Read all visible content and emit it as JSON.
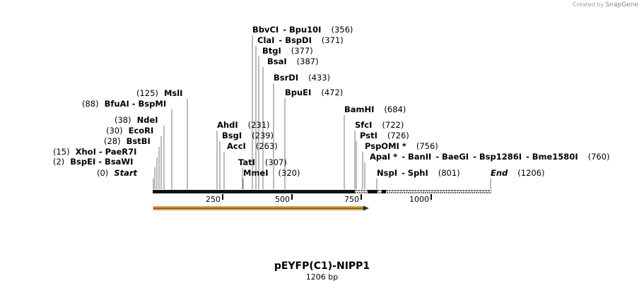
{
  "credit": {
    "prefix": "Created by",
    "brand": "SnapGene"
  },
  "plasmid": {
    "name": "pEYFP(C1)-NIPP1",
    "length_label": "1206 bp"
  },
  "scale_ticks": [
    "250",
    "500",
    "750",
    "1000"
  ],
  "sites": [
    {
      "id": "bbvci",
      "enzymes": [
        "BbvCI",
        "Bpu10I"
      ],
      "pos": "(356)"
    },
    {
      "id": "clai",
      "enzymes": [
        "ClaI",
        "BspDI"
      ],
      "pos": "(371)"
    },
    {
      "id": "btgi",
      "enzymes": [
        "BtgI"
      ],
      "pos": "(377)"
    },
    {
      "id": "bsai",
      "enzymes": [
        "BsaI"
      ],
      "pos": "(387)"
    },
    {
      "id": "bsrdi",
      "enzymes": [
        "BsrDI"
      ],
      "pos": "(433)"
    },
    {
      "id": "bpuei",
      "enzymes": [
        "BpuEI"
      ],
      "pos": "(472)"
    },
    {
      "id": "msli",
      "enzymes": [
        "MslI"
      ],
      "pos": "(125)"
    },
    {
      "id": "bfuai",
      "enzymes": [
        "BfuAI",
        "BspMI"
      ],
      "pos": "(88)"
    },
    {
      "id": "ndei",
      "enzymes": [
        "NdeI"
      ],
      "pos": "(38)"
    },
    {
      "id": "ecori",
      "enzymes": [
        "EcoRI"
      ],
      "pos": "(30)"
    },
    {
      "id": "bstbi",
      "enzymes": [
        "BstBI"
      ],
      "pos": "(28)"
    },
    {
      "id": "xhoi",
      "enzymes": [
        "XhoI",
        "PaeR7I"
      ],
      "pos": "(15)"
    },
    {
      "id": "bspei",
      "enzymes": [
        "BspEI",
        "BsaWI"
      ],
      "pos": "(2)"
    },
    {
      "id": "start",
      "enzymes": [
        "Start"
      ],
      "pos": "(0)"
    },
    {
      "id": "ahdi",
      "enzymes": [
        "AhdI"
      ],
      "pos": "(231)"
    },
    {
      "id": "bsgi",
      "enzymes": [
        "BsgI"
      ],
      "pos": "(239)"
    },
    {
      "id": "acci",
      "enzymes": [
        "AccI"
      ],
      "pos": "(263)"
    },
    {
      "id": "tati",
      "enzymes": [
        "TatI"
      ],
      "pos": "(307)"
    },
    {
      "id": "mmei",
      "enzymes": [
        "MmeI"
      ],
      "pos": "(320)"
    },
    {
      "id": "bamhi",
      "enzymes": [
        "BamHI"
      ],
      "pos": "(684)"
    },
    {
      "id": "sfci",
      "enzymes": [
        "SfcI"
      ],
      "pos": "(722)"
    },
    {
      "id": "psti",
      "enzymes": [
        "PstI"
      ],
      "pos": "(726)"
    },
    {
      "id": "pspomi",
      "enzymes": [
        "PspOMI *"
      ],
      "pos": "(756)"
    },
    {
      "id": "apai",
      "enzymes": [
        "ApaI *",
        "BanII",
        "BaeGI",
        "Bsp1286I",
        "Bme1580I"
      ],
      "pos": "(760)"
    },
    {
      "id": "nspi",
      "enzymes": [
        "NspI",
        "SphI"
      ],
      "pos": "(801)"
    },
    {
      "id": "end",
      "enzymes": [
        "End"
      ],
      "pos": "(1206)"
    }
  ]
}
